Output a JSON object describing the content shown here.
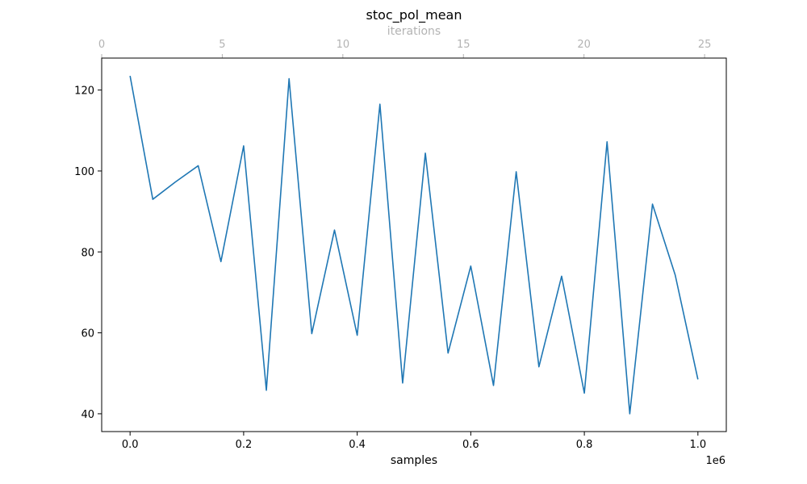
{
  "chart_data": {
    "type": "line",
    "title": "stoc_pol_mean",
    "xlabel": "samples",
    "x_offset_label": "1e6",
    "top_xlabel": "iterations",
    "x": [
      0,
      0.04,
      0.08,
      0.12,
      0.16,
      0.2,
      0.24,
      0.28,
      0.32,
      0.36,
      0.4,
      0.44,
      0.48,
      0.52,
      0.56,
      0.6,
      0.64,
      0.68,
      0.72,
      0.76,
      0.8,
      0.84,
      0.88,
      0.92,
      0.96,
      1.0
    ],
    "series": [
      {
        "values": [
          123.5,
          93.0,
          97.3,
          101.3,
          77.6,
          106.2,
          45.8,
          122.8,
          59.8,
          85.4,
          59.4,
          116.5,
          47.6,
          104.4,
          55.0,
          76.5,
          47.0,
          99.8,
          51.6,
          74.0,
          45.1,
          107.2,
          40.0,
          91.8,
          74.3,
          48.5
        ],
        "color": "#1f77b4"
      }
    ],
    "xlim": [
      -0.05,
      1.05
    ],
    "ylim": [
      35.6,
      127.9
    ],
    "xticks": [
      0.0,
      0.2,
      0.4,
      0.6,
      0.8,
      1.0
    ],
    "xtick_labels": [
      "0.0",
      "0.2",
      "0.4",
      "0.6",
      "0.8",
      "1.0"
    ],
    "yticks": [
      40,
      60,
      80,
      100,
      120
    ],
    "ytick_labels": [
      "40",
      "60",
      "80",
      "100",
      "120"
    ],
    "top_xlim": [
      0,
      25.9
    ],
    "top_xticks": [
      0,
      5,
      10,
      15,
      20,
      25
    ],
    "top_xtick_labels": [
      "0",
      "5",
      "10",
      "15",
      "20",
      "25"
    ],
    "grid": false,
    "legend": "none"
  }
}
